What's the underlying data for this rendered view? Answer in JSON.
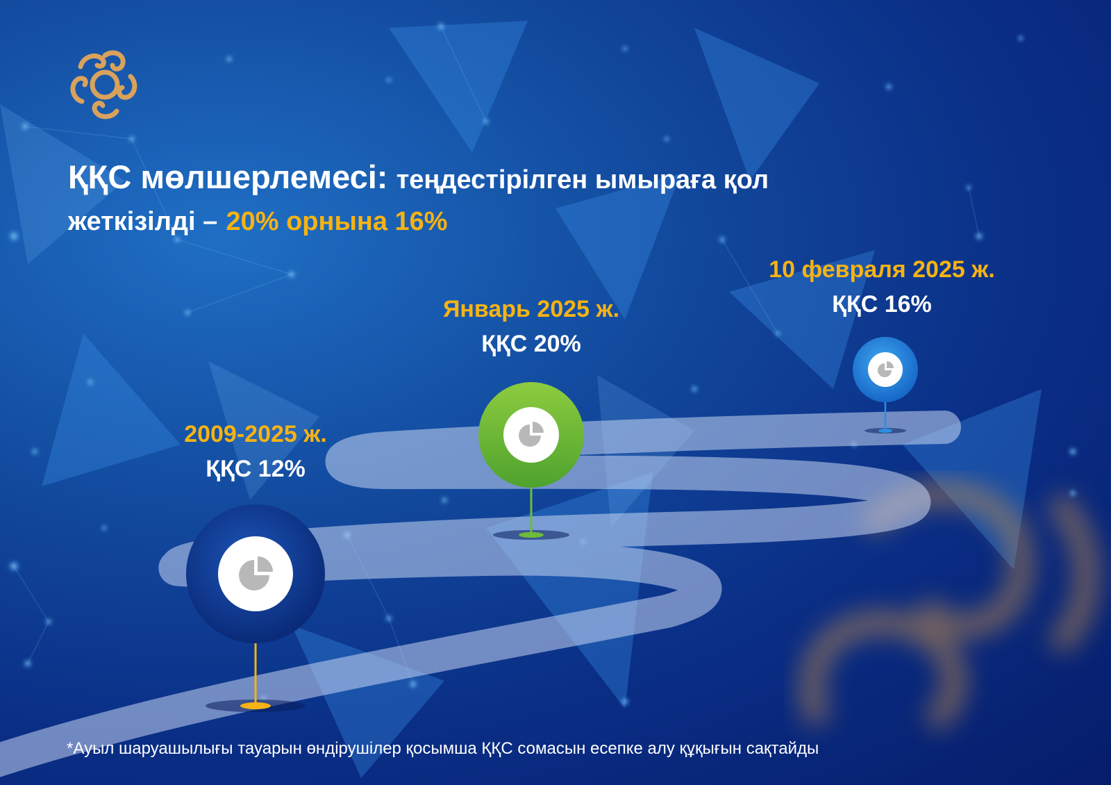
{
  "title": {
    "bold": "ҚҚС мөлшерлемесі:",
    "line_rest": "теңдестірілген ымыраға қол",
    "line2": "жеткізілді –",
    "accent": "20% орнына 16%"
  },
  "milestones": [
    {
      "date": "2009-2025 ж.",
      "rate": "ҚҚС 12%",
      "color": "#0d3a8e",
      "stem_color": "#f6b313"
    },
    {
      "date": "Январь 2025 ж.",
      "rate": "ҚҚС 20%",
      "color": "#6fbb3a",
      "stem_color": "#6fbb3a"
    },
    {
      "date": "10 февраля 2025 ж.",
      "rate": "ҚҚС 16%",
      "color": "#2a8fe0",
      "stem_color": "#2a8fe0"
    }
  ],
  "footnote": "*Ауыл шаруашылығы тауарын өндірушілер қосымша ҚҚС сомасын есепке алу құқығын сақтайды",
  "colors": {
    "accent": "#f6b313",
    "background": "#0a2e86",
    "road": "#9fb3db"
  },
  "icons": {
    "logo": "ornament-logo",
    "marker": "pie-chart-icon"
  }
}
